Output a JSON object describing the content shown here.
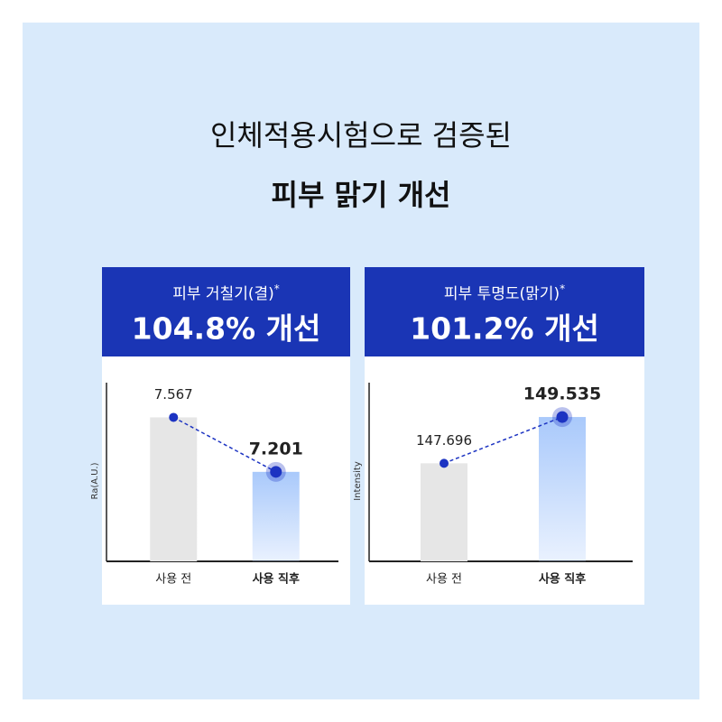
{
  "header": {
    "line1": "인체적용시험으로 검증된",
    "line2": "피부 맑기 개선"
  },
  "chart_data": [
    {
      "type": "bar",
      "subtitle": "피부 거칠기(결)",
      "marker": "*",
      "highlight": "104.8% 개선",
      "ylabel": "Ra(A.U.)",
      "categories": [
        "사용 전",
        "사용 직후"
      ],
      "values": [
        7.567,
        7.201
      ],
      "colors": [
        "#e6e6e6",
        "#a9c9fb"
      ],
      "point_color": "#1c33c2",
      "connector": "dashed",
      "ylim": [
        6.6,
        7.8
      ]
    },
    {
      "type": "bar",
      "subtitle": "피부 투명도(맑기)",
      "marker": "*",
      "highlight": "101.2% 개선",
      "ylabel": "Intensity",
      "categories": [
        "사용 전",
        "사용 직후"
      ],
      "values": [
        147.696,
        149.535
      ],
      "colors": [
        "#e6e6e6",
        "#a9c9fb"
      ],
      "point_color": "#1c33c2",
      "connector": "dashed",
      "ylim": [
        143.8,
        150.9
      ]
    }
  ]
}
